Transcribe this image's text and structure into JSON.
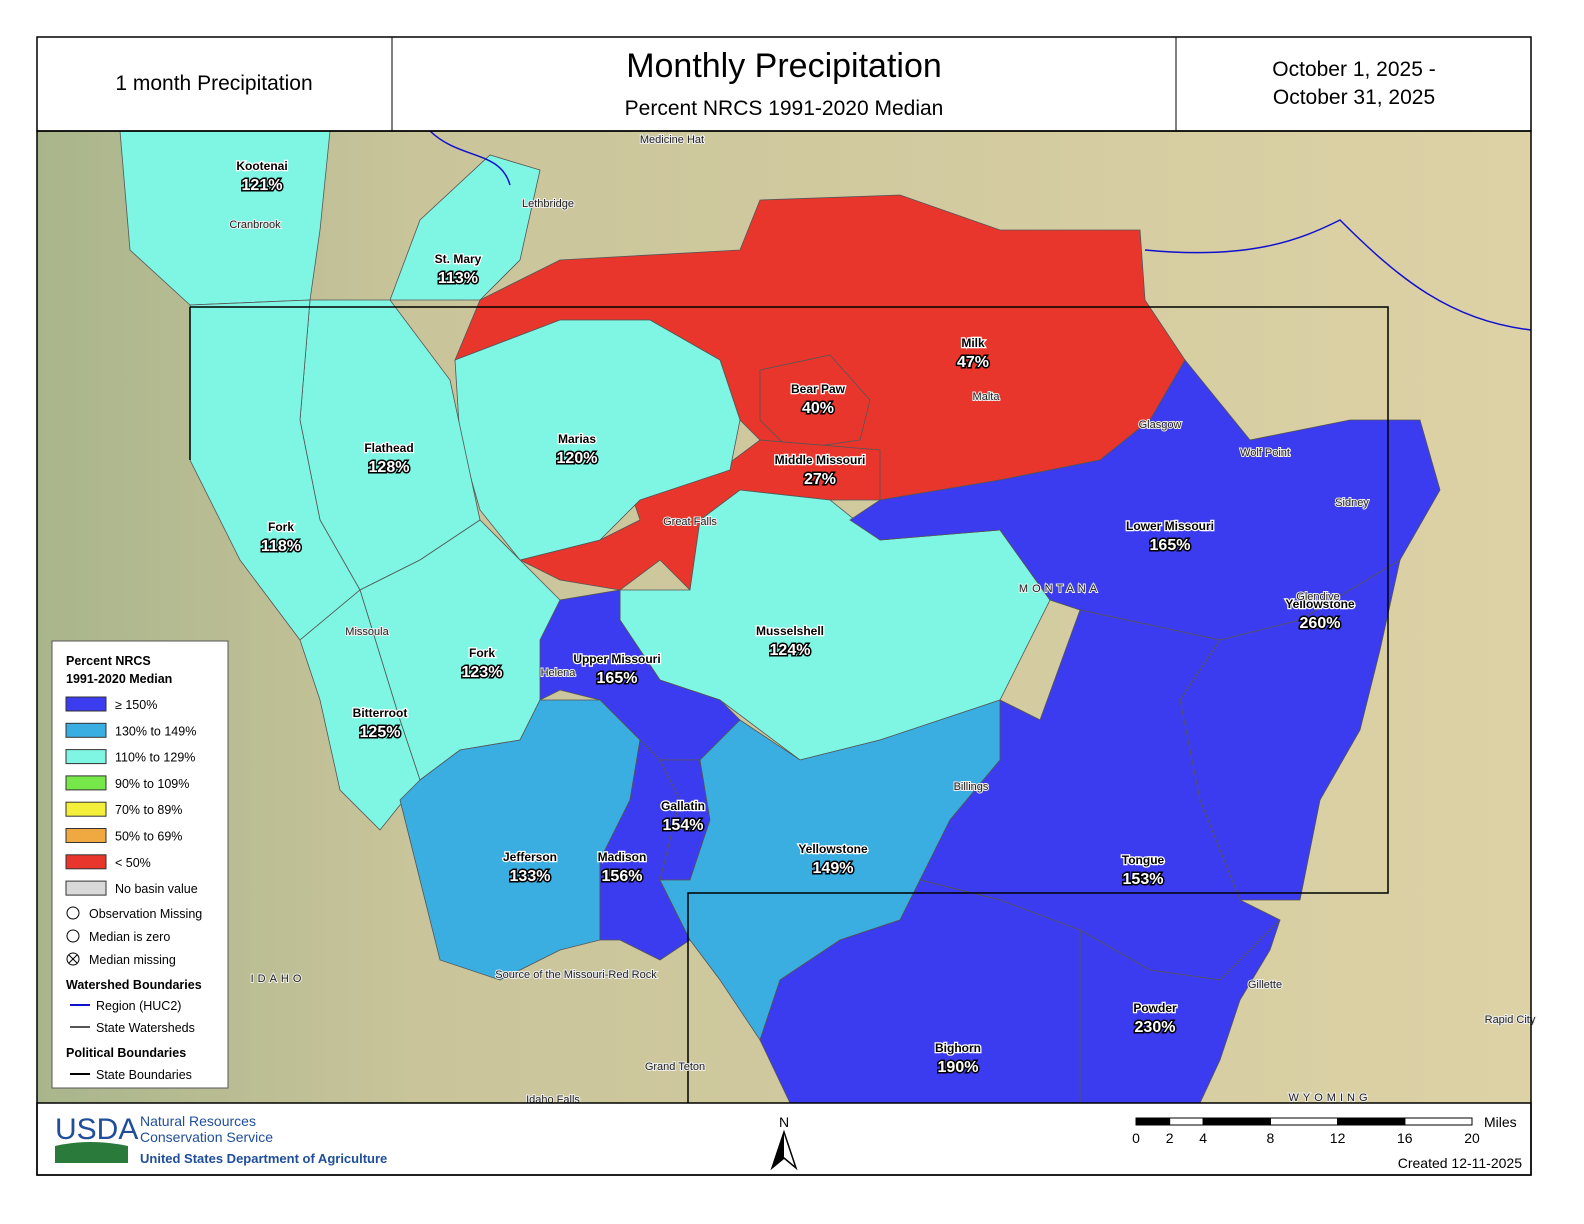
{
  "header": {
    "left": "1 month Precipitation",
    "title": "Monthly Precipitation",
    "subtitle": "Percent NRCS 1991-2020 Median",
    "dates": [
      "October 1, 2025 -",
      "October 31, 2025"
    ]
  },
  "basins": [
    {
      "name": "Kootenai",
      "value": "121%",
      "color": "#7ff5e3"
    },
    {
      "name": "St. Mary",
      "value": "113%",
      "color": "#7ff5e3"
    },
    {
      "name": "Milk",
      "value": "47%",
      "color": "#e8362c"
    },
    {
      "name": "Bear Paw",
      "value": "40%",
      "color": "#e8362c"
    },
    {
      "name": "Middle Missouri",
      "value": "27%",
      "color": "#e8362c"
    },
    {
      "name": "Marias",
      "value": "120%",
      "color": "#7ff5e3"
    },
    {
      "name": "Flathead",
      "value": "128%",
      "color": "#7ff5e3"
    },
    {
      "name": "Fork",
      "value": "118%",
      "color": "#7ff5e3"
    },
    {
      "name": "Fork",
      "value": "123%",
      "color": "#7ff5e3"
    },
    {
      "name": "Bitterroot",
      "value": "125%",
      "color": "#7ff5e3"
    },
    {
      "name": "Musselshell",
      "value": "124%",
      "color": "#7ff5e3"
    },
    {
      "name": "Upper Missouri",
      "value": "165%",
      "color": "#3b3bef"
    },
    {
      "name": "Jefferson",
      "value": "133%",
      "color": "#3aaee0"
    },
    {
      "name": "Madison",
      "value": "156%",
      "color": "#3b3bef"
    },
    {
      "name": "Gallatin",
      "value": "154%",
      "color": "#3b3bef"
    },
    {
      "name": "Yellowstone",
      "value": "149%",
      "color": "#3aaee0"
    },
    {
      "name": "Lower Missouri",
      "value": "165%",
      "color": "#3b3bef"
    },
    {
      "name": "Yellowstone",
      "value": "260%",
      "color": "#3b3bef"
    },
    {
      "name": "Tongue",
      "value": "153%",
      "color": "#3b3bef"
    },
    {
      "name": "Powder",
      "value": "230%",
      "color": "#3b3bef"
    },
    {
      "name": "Bighorn",
      "value": "190%",
      "color": "#3b3bef"
    }
  ],
  "places": [
    "Medicine Hat",
    "Lethbridge",
    "Cranbrook",
    "Glasgow",
    "Wolf Point",
    "Sidney",
    "Glendive",
    "Malta",
    "Great Falls",
    "Helena",
    "Missoula",
    "Billings",
    "Gillette",
    "Rapid City",
    "Grand Teton",
    "Idaho Falls",
    "MONTANA",
    "IDAHO",
    "WYOMING",
    "Source of the Missouri-Red Rock"
  ],
  "legend": {
    "title": [
      "Percent NRCS",
      "1991-2020 Median"
    ],
    "classes": [
      {
        "label": "≥ 150%",
        "color": "#3b3bef"
      },
      {
        "label": "130% to 149%",
        "color": "#3aaee0"
      },
      {
        "label": "110% to 129%",
        "color": "#7ff5e3"
      },
      {
        "label": "90% to 109%",
        "color": "#77e84a"
      },
      {
        "label": "70% to 89%",
        "color": "#f4ef3a"
      },
      {
        "label": "50% to 69%",
        "color": "#f0a840"
      },
      {
        "label": "< 50%",
        "color": "#e8362c"
      },
      {
        "label": "No basin value",
        "color": "#d9d9d9"
      }
    ],
    "symbols": [
      "Observation Missing",
      "Median is zero",
      "Median missing"
    ],
    "watershed_title": "Watershed Boundaries",
    "watershed": [
      {
        "label": "Region (HUC2)",
        "color": "#1010d0"
      },
      {
        "label": "State Watersheds",
        "color": "#555555"
      }
    ],
    "political_title": "Political Boundaries",
    "political": [
      {
        "label": "State Boundaries",
        "color": "#000000"
      }
    ]
  },
  "footer": {
    "usda": "USDA",
    "agency": [
      "Natural Resources",
      "Conservation Service"
    ],
    "department": "United States Department of Agriculture",
    "north": "N",
    "scale_ticks": [
      0,
      2,
      4,
      8,
      12,
      16,
      20
    ],
    "scale_unit": "Miles",
    "created": "Created 12-11-2025"
  }
}
